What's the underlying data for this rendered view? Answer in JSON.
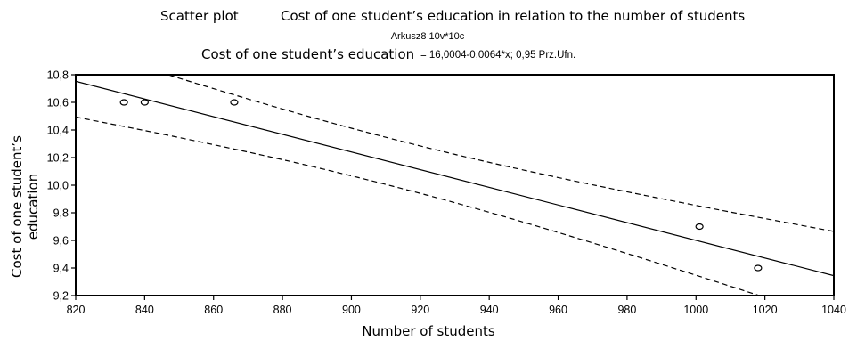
{
  "header": {
    "prefix": "Scatter plot",
    "title": "Cost of one student’s education in relation to the number of students",
    "subtitle": "Arkusz8 10v*10c",
    "eq_lhs": "Cost of one student’s education",
    "eq_rhs": "= 16,0004-0,0064*x; 0,95 Prz.Ufn."
  },
  "chart_data": {
    "type": "scatter",
    "xlabel": "Number of students",
    "ylabel_line1": "Cost of one student’s",
    "ylabel_line2": "education",
    "xlim": [
      820,
      1040
    ],
    "ylim": [
      9.2,
      10.8
    ],
    "x_ticks": [
      820,
      840,
      860,
      880,
      900,
      920,
      940,
      960,
      980,
      1000,
      1020,
      1040
    ],
    "x_tick_labels": [
      "820",
      "840",
      "860",
      "880",
      "900",
      "920",
      "940",
      "960",
      "980",
      "1000",
      "1020",
      "1040"
    ],
    "y_ticks": [
      9.2,
      9.4,
      9.6,
      9.8,
      10.0,
      10.2,
      10.4,
      10.6,
      10.8
    ],
    "y_tick_labels": [
      "9,2",
      "9,4",
      "9,6",
      "9,8",
      "10,0",
      "10,2",
      "10,4",
      "10,6",
      "10,8"
    ],
    "points": [
      {
        "x": 834,
        "y": 10.6
      },
      {
        "x": 840,
        "y": 10.6
      },
      {
        "x": 866,
        "y": 10.6
      },
      {
        "x": 1001,
        "y": 9.7
      },
      {
        "x": 1018,
        "y": 9.4
      }
    ],
    "regression": {
      "intercept": 16.0004,
      "slope": -0.0064
    },
    "confidence": 0.95,
    "colors": {
      "line": "#000000",
      "points": "#000000",
      "background": "#ffffff"
    }
  }
}
